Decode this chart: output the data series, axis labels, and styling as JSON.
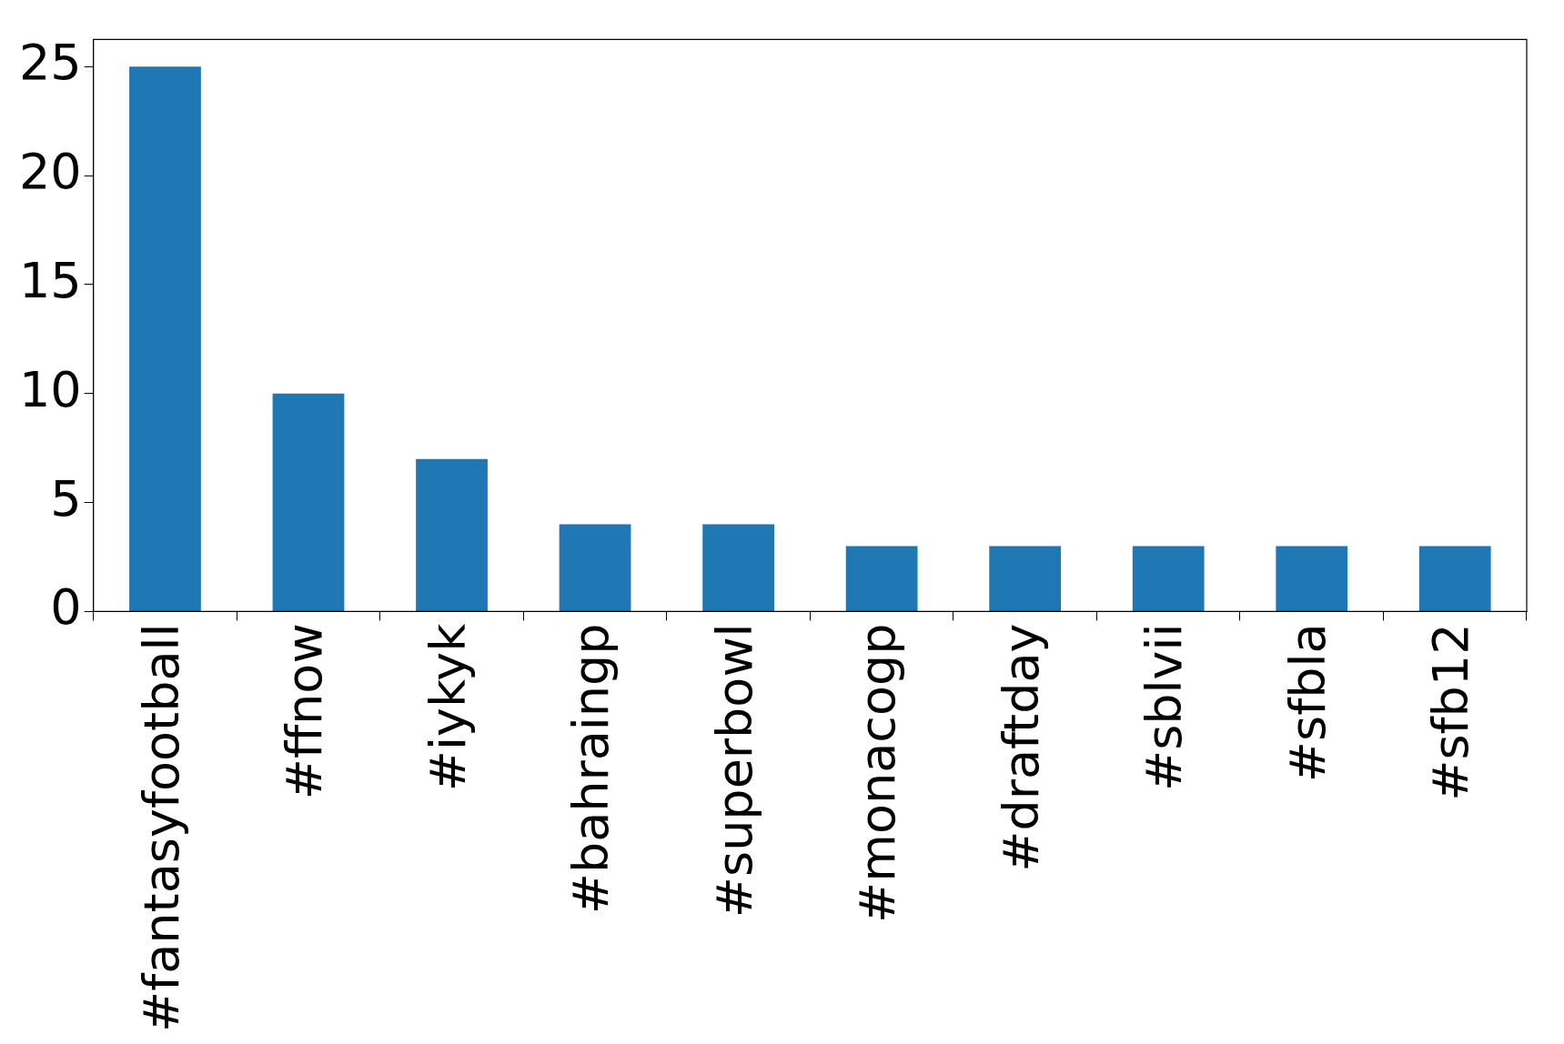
{
  "chart_data": {
    "type": "bar",
    "categories": [
      "#fantasyfootball",
      "#ffnow",
      "#iykyk",
      "#bahraingp",
      "#superbowl",
      "#monacogp",
      "#draftday",
      "#sblvii",
      "#sfbla",
      "#sfb12"
    ],
    "values": [
      25,
      10,
      7,
      4,
      4,
      3,
      3,
      3,
      3,
      3
    ],
    "color": "#1f77b4",
    "ylim": [
      0,
      26.25
    ],
    "yticks": [
      0,
      5,
      10,
      15,
      20,
      25
    ],
    "grid": false,
    "legend": false
  }
}
